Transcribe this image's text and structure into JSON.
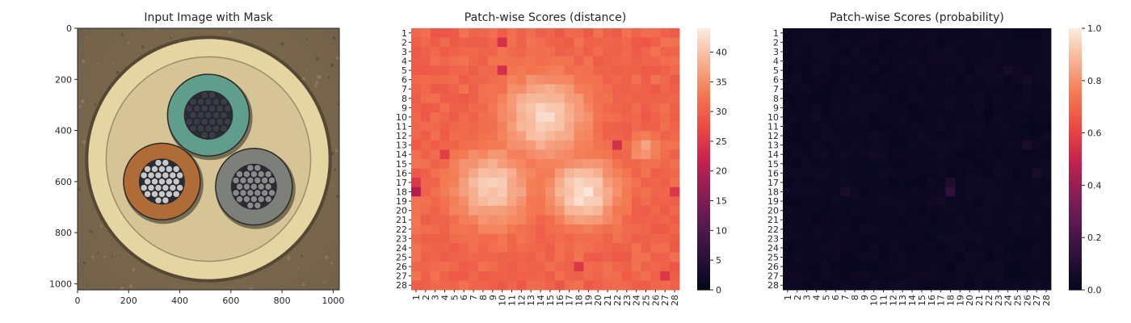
{
  "chart_data": [
    {
      "type": "image",
      "title": "Input Image with Mask",
      "xlim": [
        0,
        1024
      ],
      "ylim": [
        1024,
        0
      ],
      "xticks": [
        0,
        200,
        400,
        600,
        800,
        1000
      ],
      "yticks": [
        0,
        200,
        400,
        600,
        800,
        1000
      ],
      "image": {
        "background": "#8a7659",
        "ring": {
          "center": [
            512,
            512
          ],
          "outer_radius": 470,
          "inner_radius": 400,
          "color": "#e5d5a2"
        },
        "inner_area_color": "#d6c496",
        "cables": [
          {
            "center": [
              512,
              340
            ],
            "radius": 160,
            "insulation_color": "#5f9e8c",
            "conductor_color": "#3a3d48"
          },
          {
            "center": [
              330,
              600
            ],
            "radius": 150,
            "insulation_color": "#b06c36",
            "conductor_color": "#c8c8c8"
          },
          {
            "center": [
              690,
              620
            ],
            "radius": 150,
            "insulation_color": "#7c7f7a",
            "conductor_color": "#8a8a8a"
          }
        ]
      }
    },
    {
      "type": "heatmap",
      "title": "Patch-wise Scores (distance)",
      "rows": 28,
      "cols": 28,
      "row_labels": [
        "1",
        "2",
        "3",
        "4",
        "5",
        "6",
        "7",
        "8",
        "9",
        "10",
        "11",
        "12",
        "13",
        "14",
        "15",
        "16",
        "17",
        "18",
        "19",
        "20",
        "21",
        "22",
        "23",
        "24",
        "25",
        "26",
        "27",
        "28"
      ],
      "col_labels": [
        "1",
        "2",
        "3",
        "4",
        "5",
        "6",
        "7",
        "8",
        "9",
        "10",
        "11",
        "12",
        "13",
        "14",
        "15",
        "16",
        "17",
        "18",
        "19",
        "20",
        "21",
        "22",
        "23",
        "24",
        "25",
        "26",
        "27",
        "28"
      ],
      "value_range": [
        0,
        44
      ],
      "colorbar_ticks": [
        0,
        5,
        10,
        15,
        20,
        25,
        30,
        35,
        40
      ],
      "colormap": "rocket",
      "base_value": 30,
      "hot_regions": [
        {
          "row": 10,
          "col": 14.5,
          "peak": 42,
          "spread": 3.2
        },
        {
          "row": 17.5,
          "col": 9,
          "peak": 41,
          "spread": 3.0
        },
        {
          "row": 18,
          "col": 18.5,
          "peak": 43,
          "spread": 2.6
        },
        {
          "row": 13.5,
          "col": 25,
          "peak": 37,
          "spread": 1.2
        }
      ],
      "notable_low_cells": [
        {
          "row": 18,
          "col": 1,
          "value": 20
        },
        {
          "row": 17,
          "col": 1,
          "value": 25
        },
        {
          "row": 2,
          "col": 10,
          "value": 24
        },
        {
          "row": 5,
          "col": 10,
          "value": 24
        },
        {
          "row": 13,
          "col": 22,
          "value": 24
        },
        {
          "row": 26,
          "col": 18,
          "value": 25
        },
        {
          "row": 27,
          "col": 27,
          "value": 25
        },
        {
          "row": 18,
          "col": 28,
          "value": 25
        },
        {
          "row": 14,
          "col": 4,
          "value": 26
        }
      ]
    },
    {
      "type": "heatmap",
      "title": "Patch-wise Scores (probability)",
      "rows": 28,
      "cols": 28,
      "row_labels": [
        "1",
        "2",
        "3",
        "4",
        "5",
        "6",
        "7",
        "8",
        "9",
        "10",
        "11",
        "12",
        "13",
        "14",
        "15",
        "16",
        "17",
        "18",
        "19",
        "20",
        "21",
        "22",
        "23",
        "24",
        "25",
        "26",
        "27",
        "28"
      ],
      "col_labels": [
        "1",
        "2",
        "3",
        "4",
        "5",
        "6",
        "7",
        "8",
        "9",
        "10",
        "11",
        "12",
        "13",
        "14",
        "15",
        "16",
        "17",
        "18",
        "19",
        "20",
        "21",
        "22",
        "23",
        "24",
        "25",
        "26",
        "27",
        "28"
      ],
      "value_range": [
        0,
        1.0
      ],
      "colorbar_ticks": [
        "0.0",
        "0.2",
        "0.4",
        "0.6",
        "0.8",
        "1.0"
      ],
      "colormap": "rocket",
      "base_value": 0.02,
      "notable_cells": [
        {
          "row": 18,
          "col": 18,
          "value": 0.14
        },
        {
          "row": 17,
          "col": 18,
          "value": 0.09
        },
        {
          "row": 18,
          "col": 7,
          "value": 0.08
        },
        {
          "row": 5,
          "col": 24,
          "value": 0.07
        },
        {
          "row": 6,
          "col": 26,
          "value": 0.07
        },
        {
          "row": 13,
          "col": 26,
          "value": 0.08
        },
        {
          "row": 16,
          "col": 27,
          "value": 0.08
        },
        {
          "row": 10,
          "col": 4,
          "value": 0.06
        },
        {
          "row": 14,
          "col": 10,
          "value": 0.06
        },
        {
          "row": 19,
          "col": 17,
          "value": 0.06
        }
      ]
    }
  ]
}
